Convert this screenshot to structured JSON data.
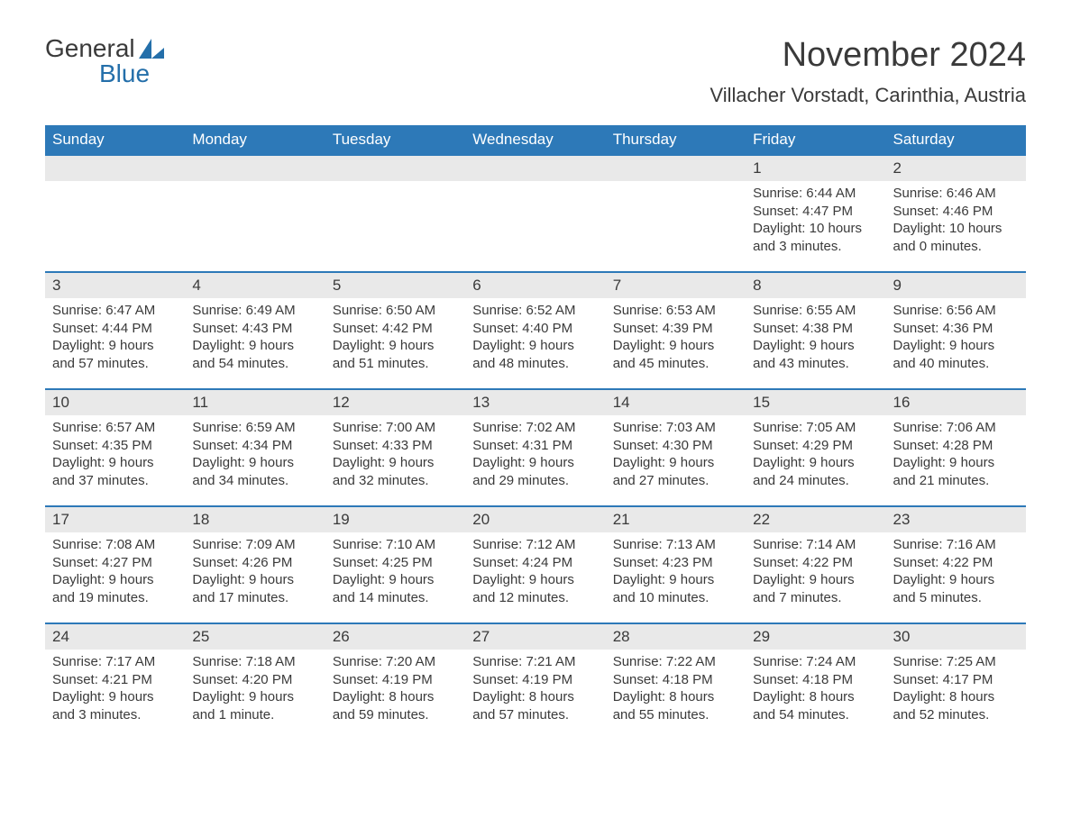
{
  "logo": {
    "word1": "General",
    "word2": "Blue"
  },
  "title": "November 2024",
  "location": "Villacher Vorstadt, Carinthia, Austria",
  "colors": {
    "header_bg": "#2d79b8",
    "header_text": "#ffffff",
    "strip_bg": "#e9e9e9",
    "text": "#3a3a3a",
    "logo_blue": "#246faa",
    "background": "#ffffff",
    "row_border": "#2d79b8"
  },
  "typography": {
    "title_fontsize": 38,
    "location_fontsize": 22,
    "dow_fontsize": 17,
    "daynum_fontsize": 17,
    "body_fontsize": 15,
    "logo_fontsize": 28
  },
  "dow": [
    "Sunday",
    "Monday",
    "Tuesday",
    "Wednesday",
    "Thursday",
    "Friday",
    "Saturday"
  ],
  "labels": {
    "sunrise": "Sunrise:",
    "sunset": "Sunset:",
    "daylight": "Daylight:"
  },
  "weeks": [
    [
      {
        "n": "",
        "sunrise": "",
        "sunset": "",
        "daylight": ""
      },
      {
        "n": "",
        "sunrise": "",
        "sunset": "",
        "daylight": ""
      },
      {
        "n": "",
        "sunrise": "",
        "sunset": "",
        "daylight": ""
      },
      {
        "n": "",
        "sunrise": "",
        "sunset": "",
        "daylight": ""
      },
      {
        "n": "",
        "sunrise": "",
        "sunset": "",
        "daylight": ""
      },
      {
        "n": "1",
        "sunrise": "6:44 AM",
        "sunset": "4:47 PM",
        "daylight": "10 hours and 3 minutes."
      },
      {
        "n": "2",
        "sunrise": "6:46 AM",
        "sunset": "4:46 PM",
        "daylight": "10 hours and 0 minutes."
      }
    ],
    [
      {
        "n": "3",
        "sunrise": "6:47 AM",
        "sunset": "4:44 PM",
        "daylight": "9 hours and 57 minutes."
      },
      {
        "n": "4",
        "sunrise": "6:49 AM",
        "sunset": "4:43 PM",
        "daylight": "9 hours and 54 minutes."
      },
      {
        "n": "5",
        "sunrise": "6:50 AM",
        "sunset": "4:42 PM",
        "daylight": "9 hours and 51 minutes."
      },
      {
        "n": "6",
        "sunrise": "6:52 AM",
        "sunset": "4:40 PM",
        "daylight": "9 hours and 48 minutes."
      },
      {
        "n": "7",
        "sunrise": "6:53 AM",
        "sunset": "4:39 PM",
        "daylight": "9 hours and 45 minutes."
      },
      {
        "n": "8",
        "sunrise": "6:55 AM",
        "sunset": "4:38 PM",
        "daylight": "9 hours and 43 minutes."
      },
      {
        "n": "9",
        "sunrise": "6:56 AM",
        "sunset": "4:36 PM",
        "daylight": "9 hours and 40 minutes."
      }
    ],
    [
      {
        "n": "10",
        "sunrise": "6:57 AM",
        "sunset": "4:35 PM",
        "daylight": "9 hours and 37 minutes."
      },
      {
        "n": "11",
        "sunrise": "6:59 AM",
        "sunset": "4:34 PM",
        "daylight": "9 hours and 34 minutes."
      },
      {
        "n": "12",
        "sunrise": "7:00 AM",
        "sunset": "4:33 PM",
        "daylight": "9 hours and 32 minutes."
      },
      {
        "n": "13",
        "sunrise": "7:02 AM",
        "sunset": "4:31 PM",
        "daylight": "9 hours and 29 minutes."
      },
      {
        "n": "14",
        "sunrise": "7:03 AM",
        "sunset": "4:30 PM",
        "daylight": "9 hours and 27 minutes."
      },
      {
        "n": "15",
        "sunrise": "7:05 AM",
        "sunset": "4:29 PM",
        "daylight": "9 hours and 24 minutes."
      },
      {
        "n": "16",
        "sunrise": "7:06 AM",
        "sunset": "4:28 PM",
        "daylight": "9 hours and 21 minutes."
      }
    ],
    [
      {
        "n": "17",
        "sunrise": "7:08 AM",
        "sunset": "4:27 PM",
        "daylight": "9 hours and 19 minutes."
      },
      {
        "n": "18",
        "sunrise": "7:09 AM",
        "sunset": "4:26 PM",
        "daylight": "9 hours and 17 minutes."
      },
      {
        "n": "19",
        "sunrise": "7:10 AM",
        "sunset": "4:25 PM",
        "daylight": "9 hours and 14 minutes."
      },
      {
        "n": "20",
        "sunrise": "7:12 AM",
        "sunset": "4:24 PM",
        "daylight": "9 hours and 12 minutes."
      },
      {
        "n": "21",
        "sunrise": "7:13 AM",
        "sunset": "4:23 PM",
        "daylight": "9 hours and 10 minutes."
      },
      {
        "n": "22",
        "sunrise": "7:14 AM",
        "sunset": "4:22 PM",
        "daylight": "9 hours and 7 minutes."
      },
      {
        "n": "23",
        "sunrise": "7:16 AM",
        "sunset": "4:22 PM",
        "daylight": "9 hours and 5 minutes."
      }
    ],
    [
      {
        "n": "24",
        "sunrise": "7:17 AM",
        "sunset": "4:21 PM",
        "daylight": "9 hours and 3 minutes."
      },
      {
        "n": "25",
        "sunrise": "7:18 AM",
        "sunset": "4:20 PM",
        "daylight": "9 hours and 1 minute."
      },
      {
        "n": "26",
        "sunrise": "7:20 AM",
        "sunset": "4:19 PM",
        "daylight": "8 hours and 59 minutes."
      },
      {
        "n": "27",
        "sunrise": "7:21 AM",
        "sunset": "4:19 PM",
        "daylight": "8 hours and 57 minutes."
      },
      {
        "n": "28",
        "sunrise": "7:22 AM",
        "sunset": "4:18 PM",
        "daylight": "8 hours and 55 minutes."
      },
      {
        "n": "29",
        "sunrise": "7:24 AM",
        "sunset": "4:18 PM",
        "daylight": "8 hours and 54 minutes."
      },
      {
        "n": "30",
        "sunrise": "7:25 AM",
        "sunset": "4:17 PM",
        "daylight": "8 hours and 52 minutes."
      }
    ]
  ]
}
